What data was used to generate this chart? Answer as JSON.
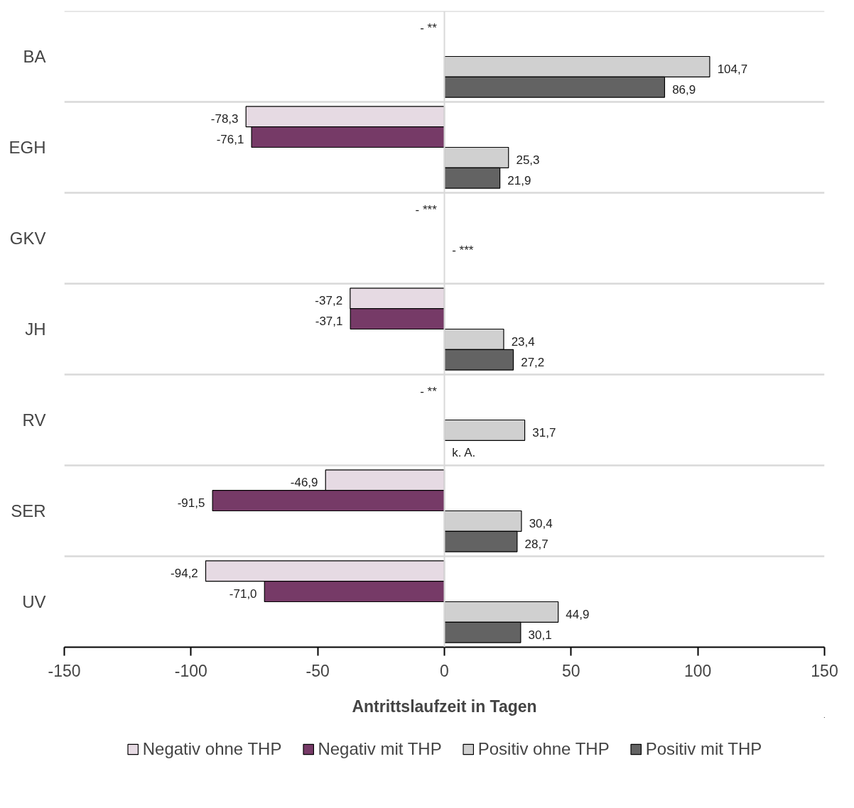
{
  "chart_data": {
    "type": "bar",
    "orientation": "horizontal",
    "xlabel": "Antrittslaufzeit in Tagen",
    "categories": [
      "BA",
      "EGH",
      "GKV",
      "JH",
      "RV",
      "SER",
      "UV"
    ],
    "xlim": [
      -150,
      150
    ],
    "xticks": [
      -150,
      -100,
      -50,
      0,
      50,
      100,
      150
    ],
    "grid": "y",
    "legend": "bottom",
    "ref_lines": [
      {
        "axis": "x",
        "value": 0,
        "color": "#d9d9d9"
      }
    ],
    "series": [
      {
        "name": "Negativ ohne THP",
        "color": "#e6dae3",
        "values": [
          null,
          -78.3,
          null,
          -37.2,
          null,
          -46.9,
          -94.2
        ],
        "value_labels": [
          "- **",
          "-78,3",
          "- ***",
          "-37,2",
          "- **",
          "-46,9",
          "-94,2"
        ]
      },
      {
        "name": "Negativ mit THP",
        "color": "#763a67",
        "values": [
          null,
          -76.1,
          null,
          -37.1,
          null,
          -91.5,
          -71.0
        ],
        "value_labels": [
          null,
          "-76,1",
          null,
          "-37,1",
          null,
          "-91,5",
          "-71,0"
        ]
      },
      {
        "name": "Positiv ohne THP",
        "color": "#d0d0d0",
        "values": [
          104.7,
          25.3,
          null,
          23.4,
          31.7,
          30.4,
          44.9
        ],
        "value_labels": [
          "104,7",
          "25,3",
          "- ***",
          "23,4",
          "31,7",
          "30,4",
          "44,9"
        ]
      },
      {
        "name": "Positiv mit THP",
        "color": "#636363",
        "values": [
          86.9,
          21.9,
          null,
          27.2,
          null,
          28.7,
          30.1
        ],
        "value_labels": [
          "86,9",
          "21,9",
          null,
          "27,2",
          "k. A.",
          "28,7",
          "30,1"
        ]
      }
    ]
  }
}
